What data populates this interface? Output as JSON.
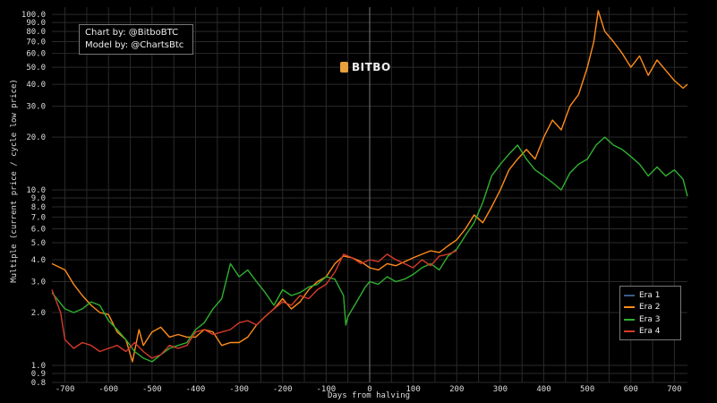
{
  "chart_data": {
    "type": "line",
    "xlabel": "Days from halving",
    "ylabel": "Multiple (current price / cycle low price)",
    "xlim": [
      -730,
      730
    ],
    "ylim": [
      0.8,
      110
    ],
    "yscale": "log",
    "grid": true,
    "legend_position": "bottom-right",
    "x_ticks": [
      "-700",
      "-600",
      "-500",
      "-400",
      "-300",
      "-200",
      "-100",
      "0",
      "100",
      "200",
      "300",
      "400",
      "500",
      "600",
      "700"
    ],
    "y_ticks": [
      "0.8",
      "0.9",
      "1.0",
      "2.0",
      "3.0",
      "4.0",
      "5.0",
      "6.0",
      "7.0",
      "8.0",
      "9.0",
      "10.0",
      "20.0",
      "30.0",
      "40.0",
      "50.0",
      "60.0",
      "70.0",
      "80.0",
      "90.0",
      "100.0"
    ],
    "series": [
      {
        "name": "Era 1",
        "color": "#3b5a86",
        "points": []
      },
      {
        "name": "Era 2",
        "color": "#ff8c1a",
        "points": [
          [
            -730,
            3.8
          ],
          [
            -700,
            3.5
          ],
          [
            -680,
            2.9
          ],
          [
            -660,
            2.5
          ],
          [
            -640,
            2.2
          ],
          [
            -620,
            2.0
          ],
          [
            -600,
            1.95
          ],
          [
            -580,
            1.55
          ],
          [
            -560,
            1.4
          ],
          [
            -545,
            1.05
          ],
          [
            -530,
            1.6
          ],
          [
            -520,
            1.3
          ],
          [
            -500,
            1.55
          ],
          [
            -480,
            1.65
          ],
          [
            -460,
            1.45
          ],
          [
            -440,
            1.5
          ],
          [
            -420,
            1.45
          ],
          [
            -400,
            1.45
          ],
          [
            -380,
            1.6
          ],
          [
            -360,
            1.55
          ],
          [
            -340,
            1.3
          ],
          [
            -320,
            1.35
          ],
          [
            -300,
            1.35
          ],
          [
            -280,
            1.45
          ],
          [
            -260,
            1.7
          ],
          [
            -240,
            1.9
          ],
          [
            -220,
            2.1
          ],
          [
            -200,
            2.4
          ],
          [
            -180,
            2.1
          ],
          [
            -160,
            2.3
          ],
          [
            -140,
            2.7
          ],
          [
            -120,
            3.0
          ],
          [
            -100,
            3.2
          ],
          [
            -80,
            3.8
          ],
          [
            -60,
            4.2
          ],
          [
            -40,
            4.1
          ],
          [
            -20,
            3.9
          ],
          [
            0,
            3.6
          ],
          [
            20,
            3.5
          ],
          [
            40,
            3.8
          ],
          [
            60,
            3.7
          ],
          [
            80,
            3.9
          ],
          [
            100,
            4.1
          ],
          [
            120,
            4.3
          ],
          [
            140,
            4.5
          ],
          [
            160,
            4.4
          ],
          [
            180,
            4.8
          ],
          [
            200,
            5.2
          ],
          [
            220,
            6.0
          ],
          [
            240,
            7.2
          ],
          [
            260,
            6.5
          ],
          [
            280,
            8.0
          ],
          [
            300,
            10.0
          ],
          [
            320,
            13.0
          ],
          [
            340,
            15.0
          ],
          [
            360,
            17.0
          ],
          [
            380,
            15.0
          ],
          [
            400,
            20.0
          ],
          [
            420,
            25.0
          ],
          [
            440,
            22.0
          ],
          [
            460,
            30.0
          ],
          [
            480,
            35.0
          ],
          [
            500,
            50.0
          ],
          [
            515,
            70.0
          ],
          [
            525,
            105.0
          ],
          [
            540,
            80.0
          ],
          [
            560,
            70.0
          ],
          [
            580,
            60.0
          ],
          [
            600,
            50.0
          ],
          [
            620,
            58.0
          ],
          [
            640,
            45.0
          ],
          [
            660,
            55.0
          ],
          [
            680,
            48.0
          ],
          [
            700,
            42.0
          ],
          [
            720,
            38.0
          ],
          [
            730,
            40.0
          ]
        ]
      },
      {
        "name": "Era 3",
        "color": "#2fb02f",
        "points": [
          [
            -730,
            2.6
          ],
          [
            -700,
            2.1
          ],
          [
            -680,
            2.0
          ],
          [
            -660,
            2.1
          ],
          [
            -640,
            2.3
          ],
          [
            -620,
            2.2
          ],
          [
            -600,
            1.8
          ],
          [
            -580,
            1.6
          ],
          [
            -560,
            1.4
          ],
          [
            -540,
            1.2
          ],
          [
            -520,
            1.1
          ],
          [
            -500,
            1.05
          ],
          [
            -480,
            1.15
          ],
          [
            -460,
            1.25
          ],
          [
            -440,
            1.3
          ],
          [
            -420,
            1.35
          ],
          [
            -400,
            1.6
          ],
          [
            -380,
            1.75
          ],
          [
            -360,
            2.1
          ],
          [
            -340,
            2.4
          ],
          [
            -320,
            3.8
          ],
          [
            -300,
            3.2
          ],
          [
            -280,
            3.5
          ],
          [
            -260,
            3.0
          ],
          [
            -240,
            2.6
          ],
          [
            -220,
            2.2
          ],
          [
            -200,
            2.7
          ],
          [
            -180,
            2.5
          ],
          [
            -160,
            2.6
          ],
          [
            -140,
            2.8
          ],
          [
            -120,
            2.9
          ],
          [
            -100,
            3.2
          ],
          [
            -80,
            3.1
          ],
          [
            -60,
            2.5
          ],
          [
            -55,
            1.7
          ],
          [
            -50,
            1.9
          ],
          [
            -30,
            2.3
          ],
          [
            -10,
            2.8
          ],
          [
            0,
            3.0
          ],
          [
            20,
            2.9
          ],
          [
            40,
            3.2
          ],
          [
            60,
            3.0
          ],
          [
            80,
            3.1
          ],
          [
            100,
            3.3
          ],
          [
            120,
            3.6
          ],
          [
            140,
            3.8
          ],
          [
            160,
            3.5
          ],
          [
            180,
            4.2
          ],
          [
            200,
            4.6
          ],
          [
            220,
            5.5
          ],
          [
            240,
            6.5
          ],
          [
            260,
            8.5
          ],
          [
            280,
            12.0
          ],
          [
            300,
            14.0
          ],
          [
            320,
            16.0
          ],
          [
            340,
            18.0
          ],
          [
            360,
            15.0
          ],
          [
            380,
            13.0
          ],
          [
            400,
            12.0
          ],
          [
            420,
            11.0
          ],
          [
            440,
            10.0
          ],
          [
            460,
            12.5
          ],
          [
            480,
            14.0
          ],
          [
            500,
            15.0
          ],
          [
            520,
            18.0
          ],
          [
            540,
            20.0
          ],
          [
            560,
            18.0
          ],
          [
            580,
            17.0
          ],
          [
            600,
            15.5
          ],
          [
            620,
            14.0
          ],
          [
            640,
            12.0
          ],
          [
            660,
            13.5
          ],
          [
            680,
            12.0
          ],
          [
            700,
            13.0
          ],
          [
            720,
            11.5
          ],
          [
            730,
            9.2
          ]
        ]
      },
      {
        "name": "Era 4",
        "color": "#d63a2a",
        "points": [
          [
            -730,
            2.7
          ],
          [
            -710,
            2.0
          ],
          [
            -700,
            1.4
          ],
          [
            -680,
            1.25
          ],
          [
            -660,
            1.35
          ],
          [
            -640,
            1.3
          ],
          [
            -620,
            1.2
          ],
          [
            -600,
            1.25
          ],
          [
            -580,
            1.3
          ],
          [
            -560,
            1.2
          ],
          [
            -540,
            1.35
          ],
          [
            -520,
            1.2
          ],
          [
            -500,
            1.1
          ],
          [
            -480,
            1.15
          ],
          [
            -460,
            1.3
          ],
          [
            -440,
            1.25
          ],
          [
            -420,
            1.3
          ],
          [
            -400,
            1.55
          ],
          [
            -380,
            1.6
          ],
          [
            -360,
            1.5
          ],
          [
            -340,
            1.55
          ],
          [
            -320,
            1.6
          ],
          [
            -300,
            1.75
          ],
          [
            -280,
            1.8
          ],
          [
            -260,
            1.7
          ],
          [
            -240,
            1.9
          ],
          [
            -220,
            2.1
          ],
          [
            -200,
            2.3
          ],
          [
            -180,
            2.2
          ],
          [
            -160,
            2.5
          ],
          [
            -140,
            2.4
          ],
          [
            -120,
            2.7
          ],
          [
            -100,
            2.9
          ],
          [
            -80,
            3.4
          ],
          [
            -60,
            4.3
          ],
          [
            -40,
            4.1
          ],
          [
            -20,
            3.8
          ],
          [
            0,
            4.0
          ],
          [
            20,
            3.9
          ],
          [
            40,
            4.3
          ],
          [
            60,
            4.0
          ],
          [
            80,
            3.8
          ],
          [
            100,
            3.6
          ],
          [
            120,
            4.0
          ],
          [
            140,
            3.7
          ],
          [
            160,
            4.2
          ],
          [
            180,
            4.3
          ],
          [
            200,
            4.5
          ]
        ]
      }
    ]
  },
  "credits": {
    "line1": "Chart by: @BitboBTC",
    "line2": "Model by: @ChartsBtc"
  },
  "logo": {
    "text": "BITBO"
  }
}
